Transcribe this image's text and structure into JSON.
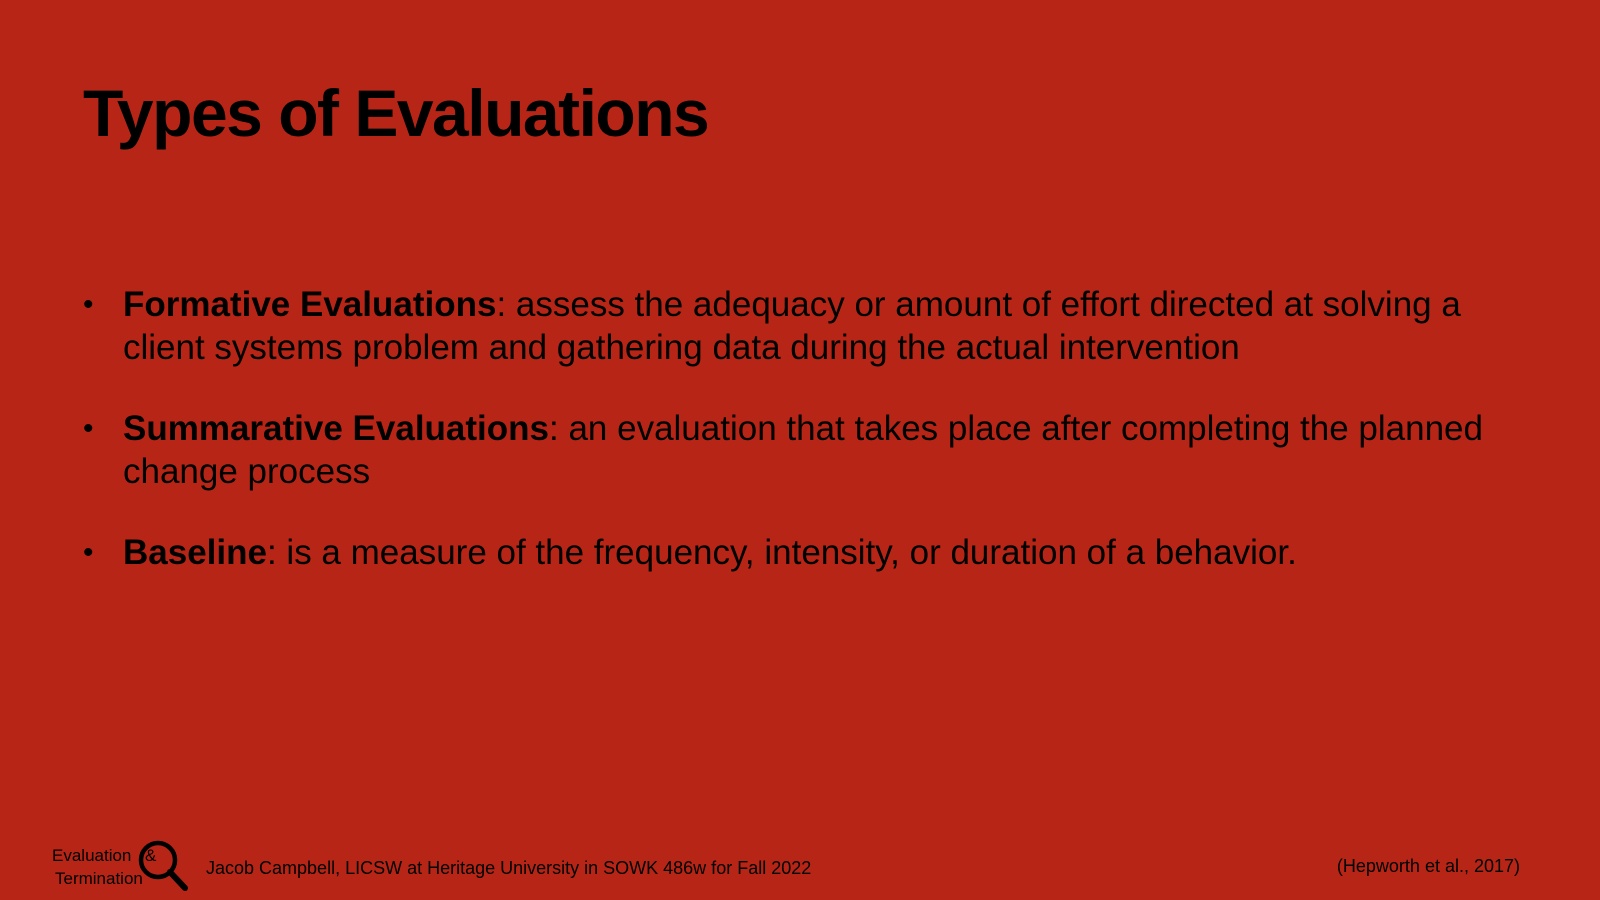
{
  "slide": {
    "title": "Types of Evaluations",
    "background_color": "#b72517",
    "bullets": [
      {
        "term": "Formative Evaluations",
        "text": ": assess the adequacy or amount of effort directed at solving a client systems problem and gathering data during the actual intervention"
      },
      {
        "term": "Summarative Evaluations",
        "text": ": an evaluation that takes place after completing the planned change process"
      },
      {
        "term": "Baseline",
        "text": ": is a measure of the frequency, intensity, or duration of a behavior."
      }
    ]
  },
  "footer": {
    "logo": {
      "line1": "Evaluation",
      "ampersand": "&",
      "line2": "Termination",
      "icon": "magnifier-icon"
    },
    "credit": "Jacob Campbell, LICSW at Heritage University in SOWK 486w for Fall 2022",
    "citation": "(Hepworth et al., 2017)"
  }
}
